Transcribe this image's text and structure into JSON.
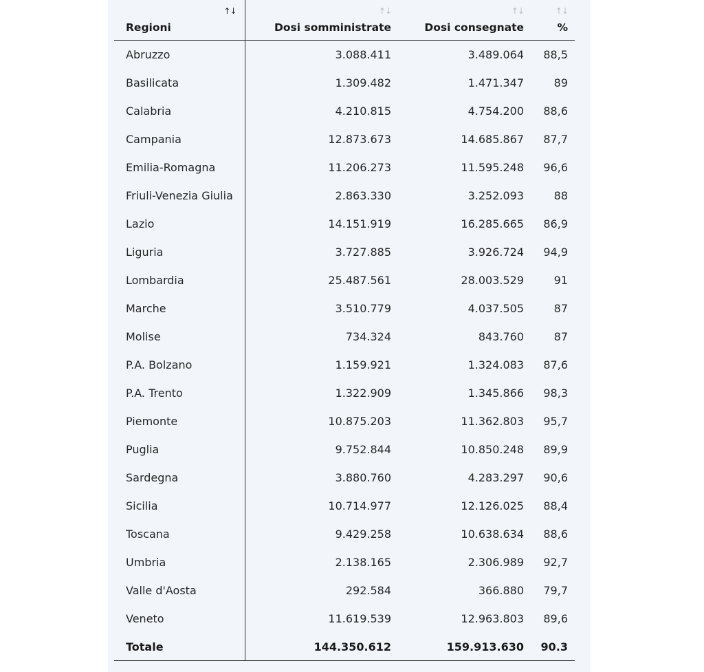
{
  "table": {
    "headers": {
      "region": "Regioni",
      "administered": "Dosi somministrate",
      "delivered": "Dosi consegnate",
      "percent": "%"
    },
    "sort_icon": "↑↓",
    "rows": [
      {
        "region": "Abruzzo",
        "administered": "3.088.411",
        "delivered": "3.489.064",
        "percent": "88,5"
      },
      {
        "region": "Basilicata",
        "administered": "1.309.482",
        "delivered": "1.471.347",
        "percent": "89"
      },
      {
        "region": "Calabria",
        "administered": "4.210.815",
        "delivered": "4.754.200",
        "percent": "88,6"
      },
      {
        "region": "Campania",
        "administered": "12.873.673",
        "delivered": "14.685.867",
        "percent": "87,7"
      },
      {
        "region": "Emilia-Romagna",
        "administered": "11.206.273",
        "delivered": "11.595.248",
        "percent": "96,6"
      },
      {
        "region": "Friuli-Venezia Giulia",
        "administered": "2.863.330",
        "delivered": "3.252.093",
        "percent": "88"
      },
      {
        "region": "Lazio",
        "administered": "14.151.919",
        "delivered": "16.285.665",
        "percent": "86,9"
      },
      {
        "region": "Liguria",
        "administered": "3.727.885",
        "delivered": "3.926.724",
        "percent": "94,9"
      },
      {
        "region": "Lombardia",
        "administered": "25.487.561",
        "delivered": "28.003.529",
        "percent": "91"
      },
      {
        "region": "Marche",
        "administered": "3.510.779",
        "delivered": "4.037.505",
        "percent": "87"
      },
      {
        "region": "Molise",
        "administered": "734.324",
        "delivered": "843.760",
        "percent": "87"
      },
      {
        "region": "P.A. Bolzano",
        "administered": "1.159.921",
        "delivered": "1.324.083",
        "percent": "87,6"
      },
      {
        "region": "P.A. Trento",
        "administered": "1.322.909",
        "delivered": "1.345.866",
        "percent": "98,3"
      },
      {
        "region": "Piemonte",
        "administered": "10.875.203",
        "delivered": "11.362.803",
        "percent": "95,7"
      },
      {
        "region": "Puglia",
        "administered": "9.752.844",
        "delivered": "10.850.248",
        "percent": "89,9"
      },
      {
        "region": "Sardegna",
        "administered": "3.880.760",
        "delivered": "4.283.297",
        "percent": "90,6"
      },
      {
        "region": "Sicilia",
        "administered": "10.714.977",
        "delivered": "12.126.025",
        "percent": "88,4"
      },
      {
        "region": "Toscana",
        "administered": "9.429.258",
        "delivered": "10.638.634",
        "percent": "88,6"
      },
      {
        "region": "Umbria",
        "administered": "2.138.165",
        "delivered": "2.306.989",
        "percent": "92,7"
      },
      {
        "region": "Valle d'Aosta",
        "administered": "292.584",
        "delivered": "366.880",
        "percent": "79,7"
      },
      {
        "region": "Veneto",
        "administered": "11.619.539",
        "delivered": "12.963.803",
        "percent": "89,6"
      }
    ],
    "total": {
      "region": "Totale",
      "administered": "144.350.612",
      "delivered": "159.913.630",
      "percent": "90.3"
    }
  }
}
